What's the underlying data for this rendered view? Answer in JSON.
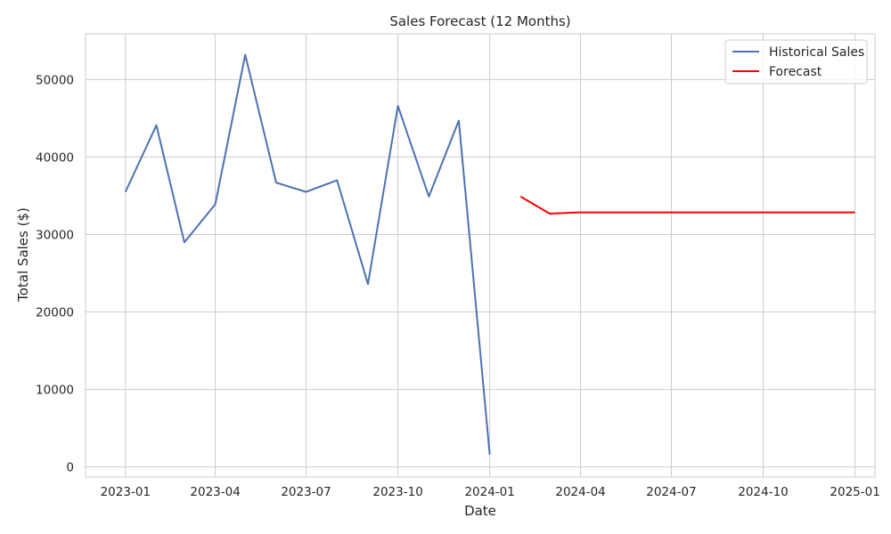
{
  "chart_data": {
    "type": "line",
    "title": "Sales Forecast (12 Months)",
    "xlabel": "Date",
    "ylabel": "Total Sales ($)",
    "x_range": [
      "2022-11-22",
      "2025-01-21"
    ],
    "ylim": [
      -1300,
      55900
    ],
    "y_ticks": [
      0,
      10000,
      20000,
      30000,
      40000,
      50000
    ],
    "x_ticks": [
      "2023-01-01",
      "2023-04-01",
      "2023-07-01",
      "2023-10-01",
      "2024-01-01",
      "2024-04-01",
      "2024-07-01",
      "2024-10-01",
      "2025-01-01"
    ],
    "x_tick_labels": [
      "2023-01",
      "2023-04",
      "2023-07",
      "2023-10",
      "2024-01",
      "2024-04",
      "2024-07",
      "2024-10",
      "2025-01"
    ],
    "grid": true,
    "legend_position": "top-right",
    "series": [
      {
        "name": "Historical Sales",
        "color": "#4c72b0",
        "x": [
          "2023-01-01",
          "2023-02-01",
          "2023-03-01",
          "2023-04-01",
          "2023-05-01",
          "2023-06-01",
          "2023-07-01",
          "2023-08-01",
          "2023-09-01",
          "2023-10-01",
          "2023-11-01",
          "2023-12-01",
          "2024-01-01"
        ],
        "y": [
          35500,
          44100,
          29000,
          33900,
          53200,
          36700,
          35500,
          37000,
          23600,
          46600,
          34900,
          44700,
          1600
        ]
      },
      {
        "name": "Forecast",
        "color": "#ff0000",
        "x": [
          "2024-02-01",
          "2024-03-01",
          "2024-04-01",
          "2024-05-01",
          "2024-06-01",
          "2024-07-01",
          "2024-08-01",
          "2024-09-01",
          "2024-10-01",
          "2024-11-01",
          "2024-12-01",
          "2025-01-01"
        ],
        "y": [
          34900,
          32700,
          32850,
          32850,
          32850,
          32850,
          32850,
          32850,
          32850,
          32850,
          32850,
          32850
        ]
      }
    ]
  }
}
